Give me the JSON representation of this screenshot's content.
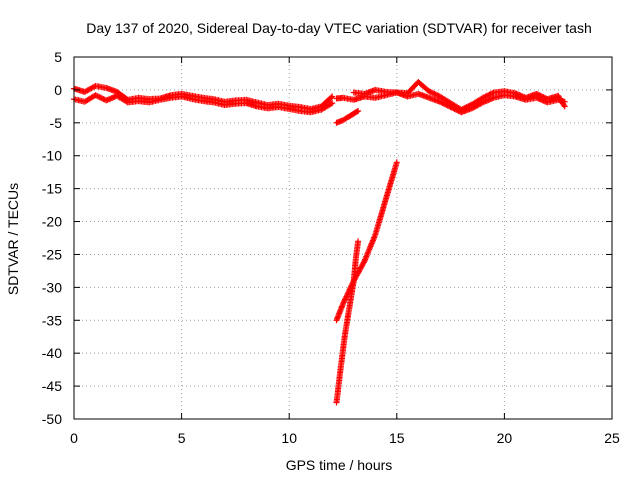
{
  "chart_data": {
    "type": "scatter",
    "title": "Day 137 of 2020, Sidereal Day-to-day VTEC variation (SDTVAR) for receiver tash",
    "xlabel": "GPS time / hours",
    "ylabel": "SDTVAR / TECUs",
    "xlim": [
      0,
      25
    ],
    "ylim": [
      -50,
      5
    ],
    "xticks": [
      "0",
      "5",
      "10",
      "15",
      "20",
      "25"
    ],
    "yticks": [
      "5",
      "0",
      "-5",
      "-10",
      "-15",
      "-20",
      "-25",
      "-30",
      "-35",
      "-40",
      "-45",
      "-50"
    ],
    "marker": "plus",
    "grid": true,
    "series": [
      {
        "name": "SDTVAR",
        "color": "#ff0000",
        "segments": [
          {
            "x": [
              0.0,
              0.5,
              1.0,
              1.5,
              2.0,
              2.5,
              3.0,
              3.5,
              4.0,
              4.5,
              5.0,
              5.5,
              6.0,
              6.5,
              7.0,
              7.5,
              8.0,
              8.5,
              9.0,
              9.5,
              10.0,
              10.5,
              11.0,
              11.5,
              12.0
            ],
            "y": [
              0.2,
              -0.3,
              0.6,
              0.3,
              -0.3,
              -1.5,
              -1.2,
              -1.4,
              -1.3,
              -0.8,
              -0.6,
              -0.9,
              -1.2,
              -1.4,
              -1.8,
              -1.6,
              -1.5,
              -1.9,
              -2.3,
              -2.1,
              -2.4,
              -2.6,
              -2.9,
              -2.5,
              -1.0
            ]
          },
          {
            "x": [
              0.0,
              0.5,
              1.0,
              1.5,
              2.0,
              2.5,
              3.0,
              3.5,
              4.0,
              4.5,
              5.0,
              5.5,
              6.0,
              6.5,
              7.0,
              7.5,
              8.0,
              8.5,
              9.0,
              9.5,
              10.0,
              10.5,
              11.0,
              11.5,
              12.0
            ],
            "y": [
              -1.4,
              -1.8,
              -0.8,
              -1.6,
              -0.9,
              -1.9,
              -1.7,
              -1.9,
              -1.5,
              -1.2,
              -1.0,
              -1.4,
              -1.7,
              -1.9,
              -2.3,
              -2.1,
              -2.0,
              -2.5,
              -2.8,
              -2.6,
              -2.9,
              -3.2,
              -3.4,
              -3.0,
              -2.0
            ]
          },
          {
            "x": [
              12.2,
              12.5,
              12.8,
              13.0,
              13.2
            ],
            "y": [
              -5.0,
              -4.6,
              -4.0,
              -3.6,
              -3.2
            ]
          },
          {
            "x": [
              12.2,
              12.5,
              13.0,
              13.5,
              14.0,
              14.5,
              15.0,
              15.5,
              16.0,
              16.5,
              17.0,
              17.5,
              18.0,
              18.5,
              19.0,
              19.5,
              20.0,
              20.5,
              21.0,
              21.5,
              22.0,
              22.5,
              22.8
            ],
            "y": [
              -1.3,
              -1.2,
              -1.5,
              -1.0,
              -1.2,
              -0.8,
              -0.4,
              -1.0,
              -0.6,
              -1.2,
              -1.8,
              -2.6,
              -3.4,
              -2.8,
              -1.9,
              -1.2,
              -0.8,
              -1.0,
              -1.5,
              -1.2,
              -1.9,
              -1.5,
              -1.8
            ]
          },
          {
            "x": [
              13.0,
              13.5,
              14.0,
              14.5,
              15.0,
              15.5,
              16.0,
              16.5,
              17.0,
              17.5,
              18.0,
              18.5,
              19.0,
              19.5,
              20.0,
              20.5,
              21.0,
              21.5,
              22.0,
              22.5,
              22.8
            ],
            "y": [
              -0.4,
              -0.6,
              0.0,
              -0.3,
              -0.4,
              -0.5,
              1.2,
              -0.2,
              -1.0,
              -2.0,
              -3.0,
              -2.2,
              -1.2,
              -0.4,
              -0.2,
              -0.5,
              -1.2,
              -0.6,
              -1.4,
              -0.9,
              -2.5
            ]
          },
          {
            "x": [
              12.2,
              12.5,
              13.0,
              13.5,
              14.0,
              14.5,
              15.0
            ],
            "y": [
              -35.0,
              -32.5,
              -29.0,
              -26.0,
              -22.0,
              -16.5,
              -11.0
            ]
          },
          {
            "x": [
              12.2,
              12.4,
              12.6,
              12.8,
              13.0,
              13.1,
              13.2
            ],
            "y": [
              -47.5,
              -42.0,
              -37.0,
              -33.0,
              -29.0,
              -25.5,
              -23.0
            ]
          }
        ]
      }
    ]
  }
}
